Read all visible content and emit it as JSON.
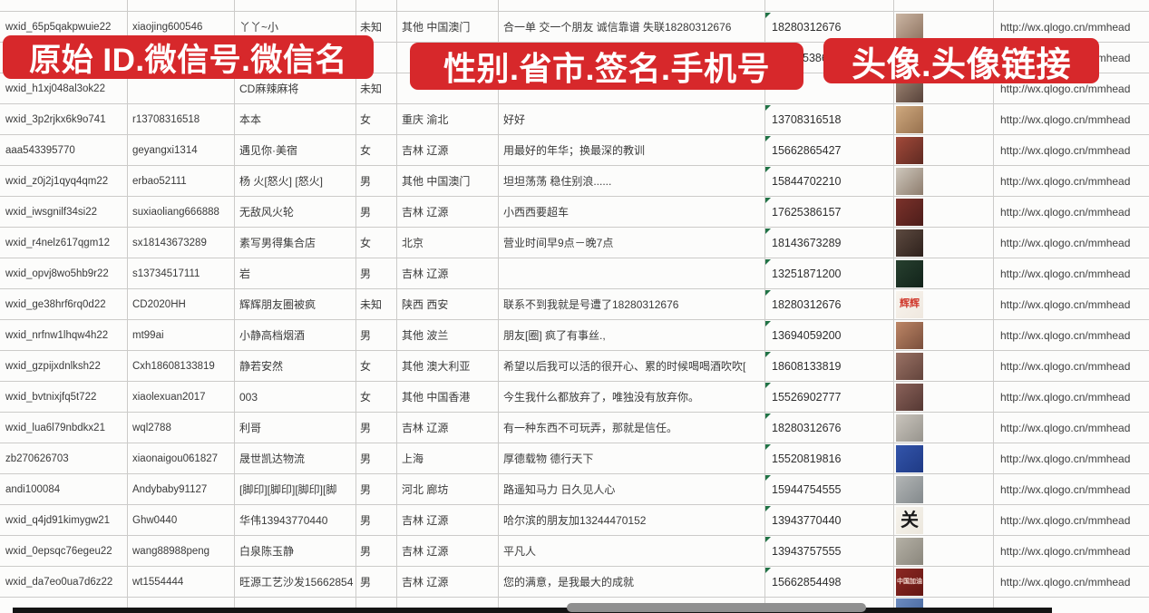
{
  "banners": {
    "left": "原始 ID.微信号.微信名",
    "middle": "性别.省市.签名.手机号",
    "right": "头像.头像链接"
  },
  "style": {
    "banner_red": "#d7282b",
    "banner_text": "#ffffff",
    "grid_line": "#cccbc9",
    "cell_text": "#3a3a3a",
    "indicator_green": "#217346",
    "footer_bar": "#141414",
    "footer_pill": "#8f8f8f"
  },
  "table": {
    "rows": [
      {
        "wxid": "wxid_65p5qakpwuie22",
        "wechat_id": "xiaojing600546",
        "nickname": "丫丫~小",
        "gender": "未知",
        "region": "其他 中国澳门",
        "signature": "合一单 交一个朋友 诚信靠谱 失联18280312676",
        "phone": "18280312676",
        "url": "http://wx.qlogo.cn/mmhead",
        "avatar": {
          "kind": "woman-long-hair",
          "c1": "#cbb6a4",
          "c2": "#8e7360"
        }
      },
      {
        "wxid": "",
        "wechat_id": "",
        "nickname": "",
        "gender": "",
        "region": "",
        "signature": "",
        "phone": "5386",
        "url": "http://wx.qlogo.cn/mmhead",
        "phone_indent": true,
        "avatar": {
          "kind": "blue-portrait",
          "c1": "#7d95bd",
          "c2": "#4a628c",
          "raised": true
        }
      },
      {
        "wxid": "wxid_h1xj048al3ok22",
        "wechat_id": "",
        "nickname": "CD麻辣麻将",
        "gender": "未知",
        "region": "",
        "signature": "",
        "phone": "",
        "url": "http://wx.qlogo.cn/mmhead",
        "avatar": {
          "kind": "woman-dark-hair",
          "c1": "#a18876",
          "c2": "#57423a"
        }
      },
      {
        "wxid": "wxid_3p2rjkx6k9o741",
        "wechat_id": "r13708316518",
        "nickname": "本本",
        "gender": "女",
        "region": "重庆 渝北",
        "signature": "好好",
        "phone": "13708316518",
        "url": "http://wx.qlogo.cn/mmhead",
        "avatar": {
          "kind": "tan-scene",
          "c1": "#cfa97f",
          "c2": "#97714e"
        }
      },
      {
        "wxid": "aaa543395770",
        "wechat_id": "geyangxi1314",
        "nickname": "遇见你·美宿",
        "gender": "女",
        "region": "吉林 辽源",
        "signature": "用最好的年华；换最深的教训",
        "phone": "15662865427",
        "url": "http://wx.qlogo.cn/mmhead",
        "avatar": {
          "kind": "group-photo",
          "c1": "#a34a3a",
          "c2": "#5f2a22"
        }
      },
      {
        "wxid": "wxid_z0j2j1qyq4qm22",
        "wechat_id": "erbao52111",
        "nickname": "杨 火[怒火] [怒火]",
        "gender": "男",
        "region": "其他 中国澳门",
        "signature": "坦坦荡荡 稳住别浪......",
        "phone": "15844702210",
        "url": "http://wx.qlogo.cn/mmhead",
        "avatar": {
          "kind": "person-in-car",
          "c1": "#cfc8bd",
          "c2": "#8d7c6d"
        }
      },
      {
        "wxid": "wxid_iwsgnilf34si22",
        "wechat_id": "suxiaoliang666888",
        "nickname": "无敌风火轮",
        "gender": "男",
        "region": "吉林 辽源",
        "signature": "小西西要超车",
        "phone": "17625386157",
        "url": "http://wx.qlogo.cn/mmhead",
        "avatar": {
          "kind": "red-signboard",
          "c1": "#7c322b",
          "c2": "#4c1d1a"
        }
      },
      {
        "wxid": "wxid_r4nelz617qgm12",
        "wechat_id": "sx18143673289",
        "nickname": "素写男得集合店",
        "gender": "女",
        "region": "北京",
        "signature": "营业时间早9点－晚7点",
        "phone": "18143673289",
        "url": "http://wx.qlogo.cn/mmhead",
        "avatar": {
          "kind": "storefront-night",
          "c1": "#5d4a40",
          "c2": "#2e211c"
        }
      },
      {
        "wxid": "wxid_opvj8wo5hb9r22",
        "wechat_id": "s13734517111",
        "nickname": "岩",
        "gender": "男",
        "region": "吉林 辽源",
        "signature": "",
        "phone": "13251871200",
        "url": "http://wx.qlogo.cn/mmhead",
        "avatar": {
          "kind": "dark-green-road",
          "c1": "#27402f",
          "c2": "#12231a"
        }
      },
      {
        "wxid": "wxid_ge38hrf6rq0d22",
        "wechat_id": "CD2020HH",
        "nickname": "辉辉朋友圈被疯",
        "gender": "未知",
        "region": "陕西 西安",
        "signature": "联系不到我就是号遭了18280312676",
        "phone": "18280312676",
        "url": "http://wx.qlogo.cn/mmhead",
        "avatar": {
          "kind": "red-text-card",
          "c1": "#f8f4ee",
          "c2": "#efe8df",
          "text": "辉辉",
          "text_color": "#d03a2e",
          "text_size": 11
        }
      },
      {
        "wxid": "wxid_nrfnw1lhqw4h22",
        "wechat_id": "mt99ai",
        "nickname": "小静高档烟酒",
        "gender": "男",
        "region": "其他 波兰",
        "signature": "朋友[圈] 疯了有事丝.,",
        "phone": "13694059200",
        "url": "http://wx.qlogo.cn/mmhead",
        "avatar": {
          "kind": "woman-sunglasses",
          "c1": "#bd8666",
          "c2": "#7a4f3c"
        }
      },
      {
        "wxid": "wxid_gzpijxdnlksh22",
        "wechat_id": "Cxh18608133819",
        "nickname": "静若安然",
        "gender": "女",
        "region": "其他 澳大利亚",
        "signature": "希望以后我可以活的很开心、累的时候喝喝酒吹吹[",
        "phone": "18608133819",
        "url": "http://wx.qlogo.cn/mmhead",
        "avatar": {
          "kind": "woman-selfie",
          "c1": "#9a7265",
          "c2": "#63443c"
        }
      },
      {
        "wxid": "wxid_bvtnixjfq5t722",
        "wechat_id": "xiaolexuan2017",
        "nickname": "003",
        "gender": "女",
        "region": "其他 中国香港",
        "signature": "今生我什么都放弃了，唯独没有放弃你。",
        "phone": "15526902777",
        "url": "http://wx.qlogo.cn/mmhead",
        "avatar": {
          "kind": "woman-selfie",
          "c1": "#8a625a",
          "c2": "#553833"
        }
      },
      {
        "wxid": "wxid_lua6l79nbdkx21",
        "wechat_id": "wql2788",
        "nickname": "利哥",
        "gender": "男",
        "region": "吉林 辽源",
        "signature": "有一种东西不可玩弄，那就是信任。",
        "phone": "18280312676",
        "url": "http://wx.qlogo.cn/mmhead",
        "avatar": {
          "kind": "gray-portrait",
          "c1": "#cac5bd",
          "c2": "#97948d"
        }
      },
      {
        "wxid": "zb270626703",
        "wechat_id": "xiaonaigou061827",
        "nickname": "晟世凯达物流",
        "gender": "男",
        "region": "上海",
        "signature": "厚德载物 德行天下",
        "phone": "15520819816",
        "url": "http://wx.qlogo.cn/mmhead",
        "avatar": {
          "kind": "qr-code-blue",
          "c1": "#3355ab",
          "c2": "#1f3a85"
        }
      },
      {
        "wxid": "andi100084",
        "wechat_id": "Andybaby91127",
        "nickname": "[脚印][脚印][脚印][脚",
        "gender": "男",
        "region": "河北 廊坊",
        "signature": "路遥知马力 日久见人心",
        "phone": "15944754555",
        "url": "http://wx.qlogo.cn/mmhead",
        "avatar": {
          "kind": "street-scene",
          "c1": "#b3b6b6",
          "c2": "#83898c"
        }
      },
      {
        "wxid": "wxid_q4jd91kimygw21",
        "wechat_id": "Ghw0440",
        "nickname": "华伟13943770440",
        "gender": "男",
        "region": "吉林 辽源",
        "signature": "哈尔滨的朋友加13244470152",
        "phone": "13943770440",
        "url": "http://wx.qlogo.cn/mmhead",
        "avatar": {
          "kind": "calligraphy-card",
          "c1": "#f6f3ec",
          "c2": "#ece7dd",
          "text": "关",
          "text_color": "#1a1a1a",
          "text_size": 20
        }
      },
      {
        "wxid": "wxid_0epsqc76egeu22",
        "wechat_id": "wang88988peng",
        "nickname": "白泉陈玉静",
        "gender": "男",
        "region": "吉林 辽源",
        "signature": "平凡人",
        "phone": "13943757555",
        "url": "http://wx.qlogo.cn/mmhead",
        "avatar": {
          "kind": "outdoor-person",
          "c1": "#b5b1a6",
          "c2": "#8a867c"
        }
      },
      {
        "wxid": "wxid_da7eo0ua7d6z22",
        "wechat_id": "wt1554444",
        "nickname": "旺源工艺沙发15662854",
        "gender": "男",
        "region": "吉林 辽源",
        "signature": "您的满意，是我最大的成就",
        "phone": "15662854498",
        "url": "http://wx.qlogo.cn/mmhead",
        "avatar": {
          "kind": "red-text-banner",
          "c1": "#8c2823",
          "c2": "#641713",
          "text": "中国加油",
          "text_color": "#f2d8d0",
          "text_size": 7
        }
      },
      {
        "wxid": "",
        "wechat_id": "",
        "nickname": "",
        "gender": "",
        "region": "",
        "signature": "",
        "phone": "",
        "url": "",
        "partial": true,
        "avatar": {
          "kind": "blue-portrait",
          "c1": "#6d8cc0",
          "c2": "#3f5f96"
        }
      }
    ]
  }
}
